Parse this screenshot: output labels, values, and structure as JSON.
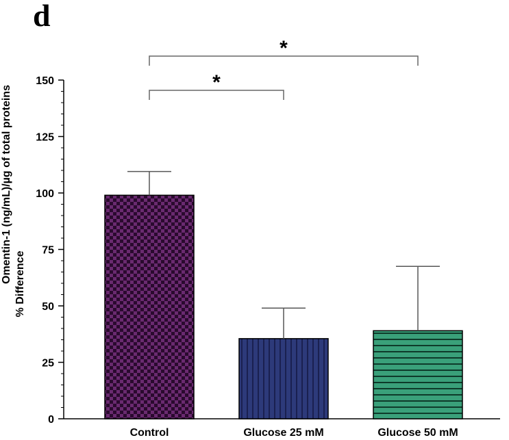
{
  "panel_label": "d",
  "chart_data": {
    "type": "bar",
    "ylabel_line1": "Omentin-1 (ng/mL)/µg of total proteins",
    "ylabel_line2": "% Difference",
    "xlabel": "",
    "ylim": [
      0,
      150
    ],
    "yticks": [
      0,
      25,
      50,
      75,
      100,
      125,
      150
    ],
    "ytick_labels": [
      "0",
      "25",
      "50",
      "75",
      "100",
      "125",
      "150"
    ],
    "categories": [
      "Control",
      "Glucose 25 mM",
      "Glucose 50 mM"
    ],
    "values": [
      99,
      35.5,
      39
    ],
    "errors": [
      10.5,
      13.5,
      28.5
    ],
    "bar_patterns": [
      "checker",
      "vertical-stripes",
      "horizontal-stripes"
    ],
    "colors": {
      "control_dark": "#2a0a2e",
      "control_light": "#6a2a70",
      "glucose25": "#2d3a7a",
      "glucose25_stripe": "#1a2050",
      "glucose50": "#3aa07a",
      "glucose50_stripe": "#0e3a2a"
    },
    "significance": [
      {
        "pair": [
          0,
          1
        ],
        "label": "*"
      },
      {
        "pair": [
          0,
          2
        ],
        "label": "*"
      }
    ]
  }
}
